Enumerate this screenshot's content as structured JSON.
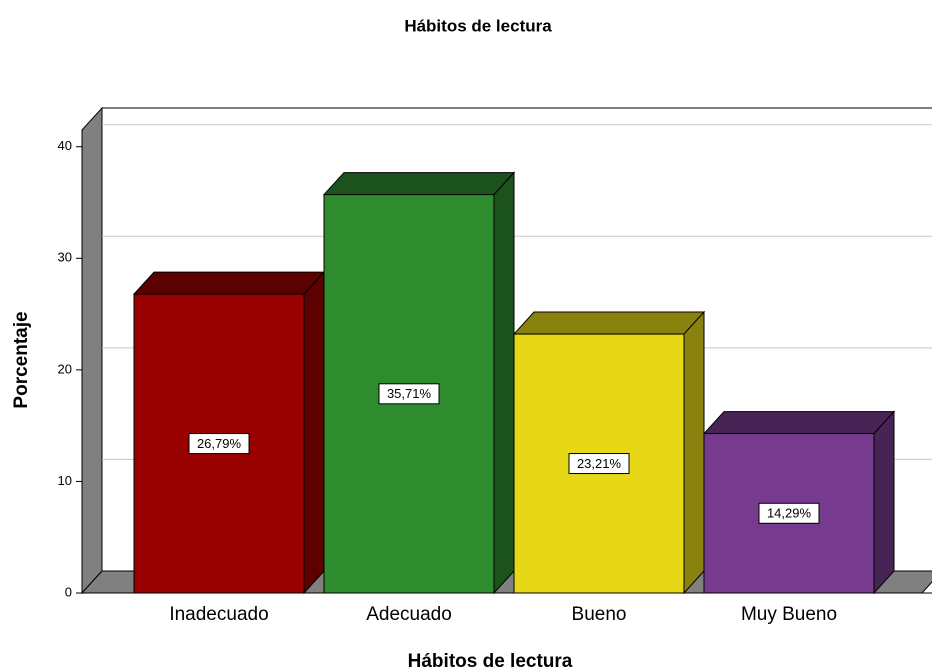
{
  "chart_data": {
    "type": "bar",
    "title": "Hábitos de lectura",
    "x_label": "Hábitos de lectura",
    "y_label": "Porcentaje",
    "categories": [
      "Inadecuado",
      "Adecuado",
      "Bueno",
      "Muy Bueno"
    ],
    "values": [
      26.79,
      35.71,
      23.21,
      14.29
    ],
    "value_labels": [
      "26,79%",
      "35,71%",
      "23,21%",
      "14,29%"
    ],
    "colors": [
      "#990000",
      "#2e8b2e",
      "#e6d817",
      "#763a8f"
    ],
    "ylim": [
      0,
      41.5
    ],
    "yticks": [
      0,
      10,
      20,
      30,
      40
    ],
    "grid": true
  }
}
